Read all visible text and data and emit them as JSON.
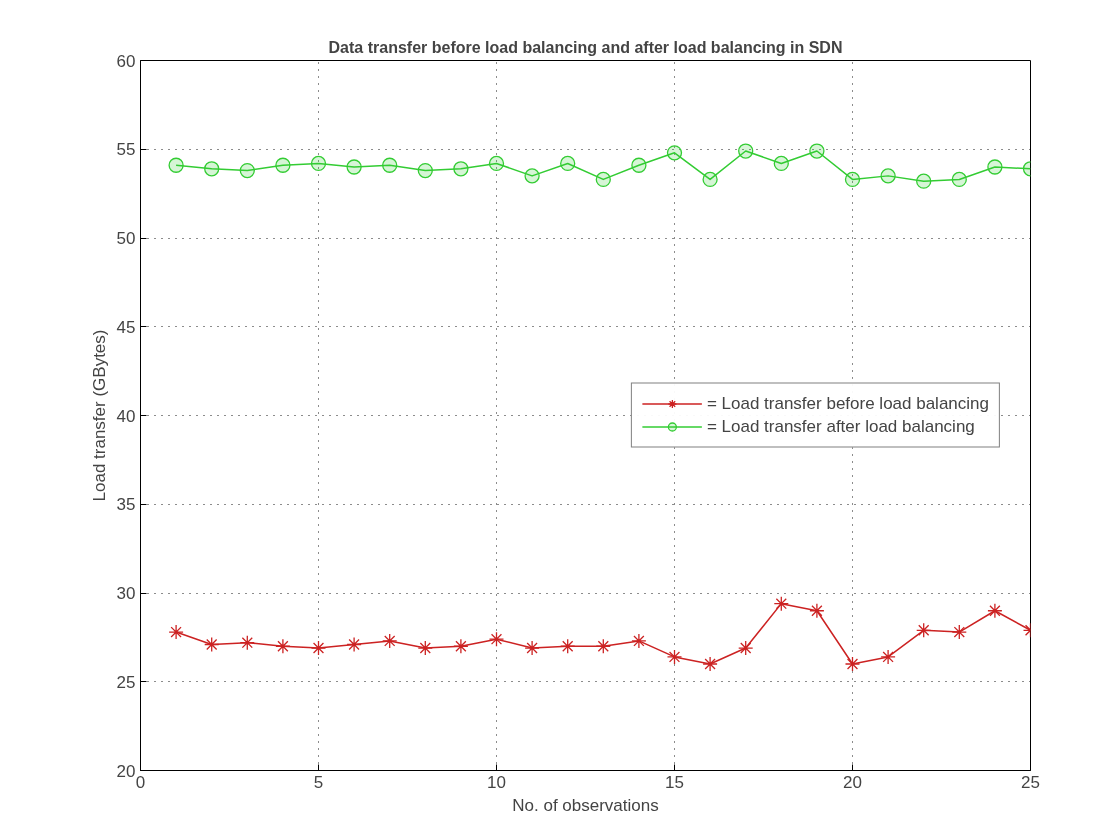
{
  "chart_data": {
    "type": "line",
    "title": "Data transfer before load balancing and after load balancing in SDN",
    "xlabel": "No. of observations",
    "ylabel": "Load transfer (GBytes)",
    "x": [
      1,
      2,
      3,
      4,
      5,
      6,
      7,
      8,
      9,
      10,
      11,
      12,
      13,
      14,
      15,
      16,
      17,
      18,
      19,
      20,
      21,
      22,
      23,
      24,
      25
    ],
    "series": [
      {
        "name": "= Load transfer before load balancing",
        "color": "#cc2222",
        "marker": "cross",
        "values": [
          27.8,
          27.1,
          27.2,
          27.0,
          26.9,
          27.1,
          27.3,
          26.9,
          27.0,
          27.4,
          26.9,
          27.0,
          27.0,
          27.3,
          26.4,
          26.0,
          26.9,
          29.4,
          29.0,
          26.0,
          26.4,
          27.9,
          27.8,
          29.0,
          27.9
        ]
      },
      {
        "name": "= Load transfer after load balancing",
        "color": "#33cc33",
        "marker": "circle",
        "values": [
          54.1,
          53.9,
          53.8,
          54.1,
          54.2,
          54.0,
          54.1,
          53.8,
          53.9,
          54.2,
          53.5,
          54.2,
          53.3,
          54.1,
          54.8,
          53.3,
          54.9,
          54.2,
          54.9,
          53.3,
          53.5,
          53.2,
          53.3,
          54.0,
          53.9
        ]
      }
    ],
    "xlim": [
      0,
      25
    ],
    "ylim": [
      20,
      60
    ],
    "xticks": [
      0,
      5,
      10,
      15,
      20,
      25
    ],
    "yticks": [
      20,
      25,
      30,
      35,
      40,
      45,
      50,
      55,
      60
    ],
    "grid": true,
    "legend": "right",
    "line_style": "solid"
  }
}
